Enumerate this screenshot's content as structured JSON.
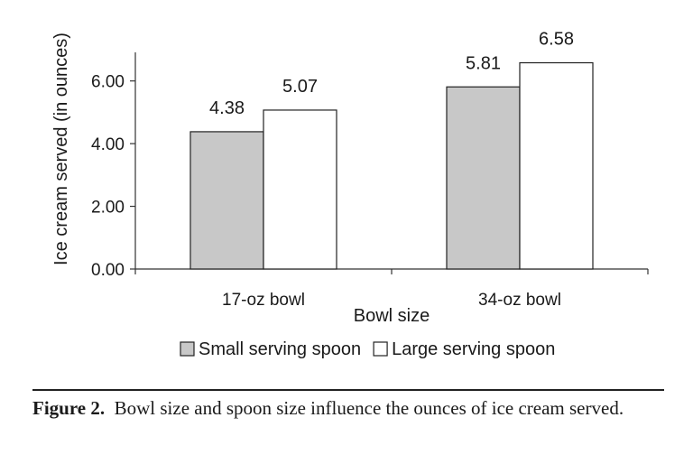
{
  "chart_data": {
    "type": "bar",
    "categories": [
      "17-oz bowl",
      "34-oz bowl"
    ],
    "series": [
      {
        "name": "Small serving spoon",
        "values": [
          4.38,
          5.81
        ],
        "color": "#c8c8c8"
      },
      {
        "name": "Large serving spoon",
        "values": [
          5.07,
          6.58
        ],
        "color": "#ffffff"
      }
    ],
    "data_labels": [
      [
        "4.38",
        "5.81"
      ],
      [
        "5.07",
        "6.58"
      ]
    ],
    "xlabel": "Bowl size",
    "ylabel": "Ice cream served (in ounces)",
    "ylim": [
      0,
      7.2
    ],
    "yticks": [
      0,
      2,
      4,
      6
    ],
    "ytick_labels": [
      "0.00",
      "2.00",
      "4.00",
      "6.00"
    ],
    "grid": false,
    "legend_position": "bottom"
  },
  "caption": {
    "label": "Figure 2.",
    "text": "Bowl size and spoon size influence the ounces of ice cream served."
  }
}
